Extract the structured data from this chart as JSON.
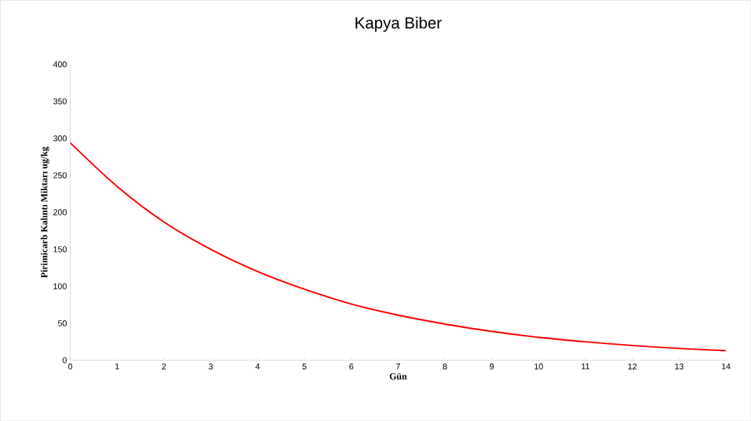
{
  "chart_data": {
    "type": "line",
    "title": "Kapya Biber",
    "xlabel": "Gün",
    "ylabel": "Pirimicarb Kalıntı Miktarı ug/kg",
    "x": [
      0,
      1,
      2,
      3,
      4,
      5,
      6,
      7,
      8,
      9,
      10,
      11,
      12,
      13,
      14
    ],
    "series": [
      {
        "color": "#ff0000",
        "values": [
          294,
          235,
          187,
          150,
          120,
          96,
          76,
          61,
          49,
          39,
          31,
          25,
          20,
          16,
          13
        ]
      }
    ],
    "xlim": [
      0,
      14
    ],
    "xticks": [
      0,
      1,
      2,
      3,
      4,
      5,
      6,
      7,
      8,
      9,
      10,
      11,
      12,
      13,
      14
    ],
    "ylim": [
      0,
      400
    ],
    "yticks": [
      0,
      50,
      100,
      150,
      200,
      250,
      300,
      350,
      400
    ],
    "marker": "none",
    "line_style": "solid"
  }
}
